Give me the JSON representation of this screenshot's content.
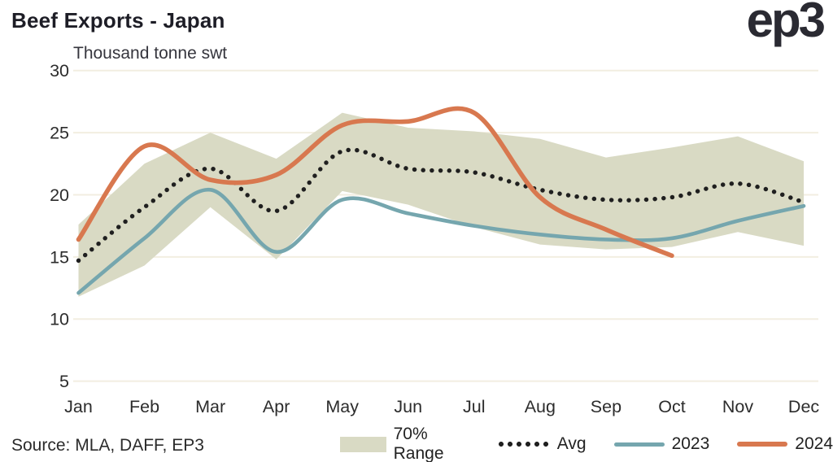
{
  "header": {
    "title": "Beef Exports - Japan",
    "subtitle": "Thousand tonne swt",
    "logo": "ep3"
  },
  "footer": {
    "source": "Source: MLA, DAFF, EP3"
  },
  "legend": {
    "range": "70% Range",
    "avg": "Avg",
    "y2023": "2023",
    "y2024": "2024"
  },
  "colors": {
    "band": "#d9dac4",
    "avg": "#1f1f1f",
    "y2023": "#75a6ae",
    "y2024": "#d8784f",
    "grid": "#f2eee1",
    "axis_text": "#2c2c2c"
  },
  "chart_data": {
    "type": "line",
    "title": "Beef Exports - Japan",
    "ylabel": "Thousand tonne swt",
    "categories": [
      "Jan",
      "Feb",
      "Mar",
      "Apr",
      "May",
      "Jun",
      "Jul",
      "Aug",
      "Sep",
      "Oct",
      "Nov",
      "Dec"
    ],
    "series": [
      {
        "name": "70% Range upper",
        "style": "band-upper",
        "values": [
          17.6,
          22.5,
          25.0,
          22.9,
          26.6,
          25.4,
          25.1,
          24.5,
          23.0,
          23.8,
          24.7,
          22.7
        ]
      },
      {
        "name": "70% Range lower",
        "style": "band-lower",
        "values": [
          11.8,
          14.3,
          19.0,
          14.8,
          20.3,
          19.2,
          17.4,
          16.0,
          15.6,
          15.8,
          17.0,
          15.9
        ]
      },
      {
        "name": "Avg",
        "style": "dotted",
        "values": [
          14.7,
          19.0,
          22.1,
          18.7,
          23.5,
          22.1,
          21.8,
          20.4,
          19.6,
          19.8,
          20.9,
          19.4
        ]
      },
      {
        "name": "2023",
        "style": "solid",
        "values": [
          12.1,
          16.5,
          20.4,
          15.4,
          19.6,
          18.5,
          17.5,
          16.8,
          16.4,
          16.5,
          17.9,
          19.1
        ]
      },
      {
        "name": "2024",
        "style": "solid",
        "values": [
          16.4,
          23.9,
          21.2,
          21.6,
          25.6,
          25.9,
          26.6,
          19.8,
          17.2,
          15.1
        ]
      }
    ],
    "ylim": [
      5,
      30
    ],
    "yticks": [
      30,
      25,
      20,
      15,
      10,
      5
    ],
    "grid": "horizontal",
    "legend_position": "bottom"
  }
}
